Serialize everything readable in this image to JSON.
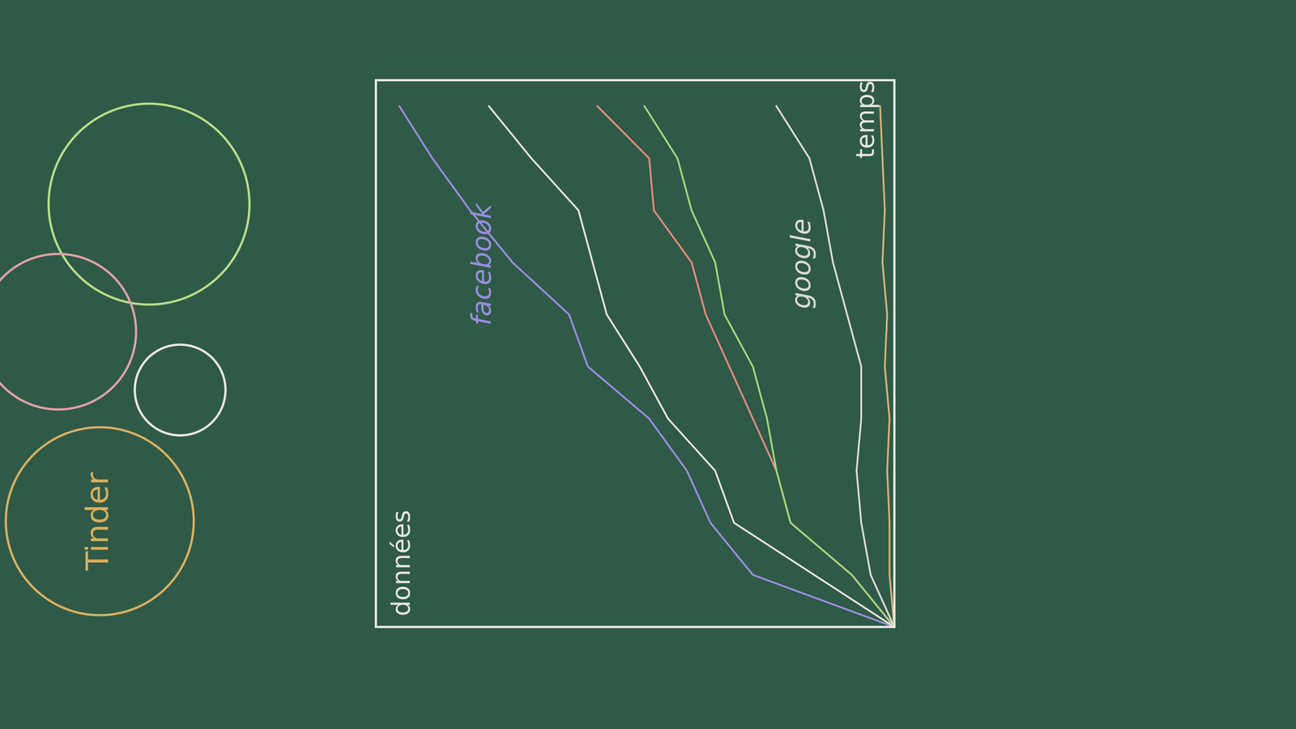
{
  "chart_data": {
    "type": "line",
    "xlabel": "temps",
    "ylabel": "données",
    "x": [
      0,
      1,
      2,
      3,
      4,
      5,
      6,
      7,
      8,
      9,
      10
    ],
    "series": [
      {
        "name": "facebook",
        "color": "#9a8fe0",
        "values": [
          0,
          3.0,
          3.9,
          4.4,
          5.2,
          6.5,
          6.9,
          8.1,
          9.0,
          9.8,
          10.5
        ]
      },
      {
        "color": "#e6e6dc",
        "values": [
          0,
          1.7,
          3.4,
          3.8,
          4.8,
          5.4,
          6.1,
          6.4,
          6.7,
          7.7,
          8.6
        ]
      },
      {
        "color": "#e58a80",
        "values": [
          0,
          0.9,
          2.2,
          2.5,
          3.0,
          3.5,
          4.0,
          4.3,
          5.1,
          5.2,
          6.3
        ]
      },
      {
        "color": "#a6d47f",
        "values": [
          0,
          0.9,
          2.2,
          2.5,
          2.7,
          3.0,
          3.6,
          3.8,
          4.3,
          4.6,
          5.3
        ]
      },
      {
        "name": "google",
        "color": "#dcdcd4",
        "values": [
          0,
          0.5,
          0.7,
          0.8,
          0.7,
          0.7,
          1.0,
          1.3,
          1.5,
          1.8,
          2.5
        ]
      },
      {
        "color": "#d9b07a",
        "values": [
          0,
          0.1,
          0.1,
          0.15,
          0.1,
          0.2,
          0.15,
          0.25,
          0.2,
          0.25,
          0.3
        ]
      }
    ],
    "xlim": [
      0,
      10.5
    ],
    "ylim": [
      0,
      11
    ],
    "xticks": [],
    "yticks": [],
    "tick_labels": false,
    "grid": false,
    "annotations": [
      "Tinder"
    ]
  }
}
